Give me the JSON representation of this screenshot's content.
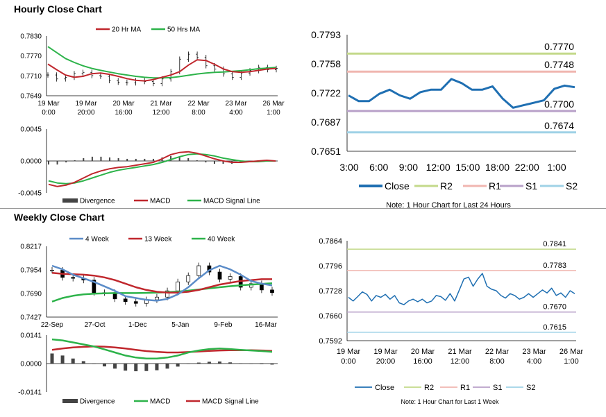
{
  "sections": {
    "hourly_title": "Hourly Close Chart",
    "weekly_title": "Weekly Close Chart"
  },
  "colors": {
    "ma_red": "#c0272d",
    "ma_green": "#2db34a",
    "blue": "#1f6fb2",
    "steel_blue": "#5b8cc8",
    "r2": "#c3d98a",
    "r1": "#f0b6b0",
    "s1": "#b8a0c8",
    "s2": "#9fd2e6",
    "bars": "#444444"
  },
  "chart_data": [
    {
      "id": "hourly_price",
      "type": "line",
      "legend": [
        "20 Hr MA",
        "50 Hrs MA"
      ],
      "y_ticks": [
        "0.7830",
        "0.7770",
        "0.7710",
        "0.7649"
      ],
      "ylim": [
        0.7649,
        0.783
      ],
      "x_ticks": [
        [
          "19 Mar",
          "0:00"
        ],
        [
          "19 Mar",
          "20:00"
        ],
        [
          "20 Mar",
          "16:00"
        ],
        [
          "21 Mar",
          "12:00"
        ],
        [
          "22 Mar",
          "8:00"
        ],
        [
          "23 Mar",
          "4:00"
        ],
        [
          "26 Mar",
          "1:00"
        ]
      ],
      "series": [
        {
          "name": "20 Hr MA",
          "values": [
            0.7745,
            0.7728,
            0.7712,
            0.7705,
            0.7708,
            0.7716,
            0.7718,
            0.7714,
            0.7708,
            0.7701,
            0.7696,
            0.7694,
            0.7698,
            0.7705,
            0.7712,
            0.7722,
            0.7742,
            0.7758,
            0.7756,
            0.7744,
            0.773,
            0.7722,
            0.772,
            0.7722,
            0.7726,
            0.773,
            0.7732
          ]
        },
        {
          "name": "50 Hrs MA",
          "values": [
            0.7798,
            0.778,
            0.7762,
            0.775,
            0.774,
            0.7732,
            0.7726,
            0.7721,
            0.7716,
            0.7712,
            0.7708,
            0.7705,
            0.7703,
            0.7703,
            0.7704,
            0.7707,
            0.7711,
            0.7715,
            0.7718,
            0.772,
            0.7721,
            0.7723,
            0.7725,
            0.7728,
            0.7731,
            0.7733,
            0.7735
          ]
        },
        {
          "name": "price",
          "values": [
            0.7712,
            0.77,
            0.7705,
            0.7716,
            0.772,
            0.771,
            0.7708,
            0.7695,
            0.769,
            0.7688,
            0.7695,
            0.7692,
            0.7686,
            0.77,
            0.7722,
            0.776,
            0.7775,
            0.7765,
            0.774,
            0.773,
            0.7715,
            0.7705,
            0.7718,
            0.7725,
            0.7735,
            0.7728,
            0.7732
          ]
        }
      ]
    },
    {
      "id": "hourly_macd",
      "type": "line",
      "legend": [
        "Divergence",
        "MACD",
        "MACD Signal Line"
      ],
      "y_ticks": [
        "0.0045",
        "0.0000",
        "-0.0045"
      ],
      "ylim": [
        -0.0045,
        0.0045
      ],
      "series": [
        {
          "name": "MACD",
          "values": [
            -0.0033,
            -0.0036,
            -0.0034,
            -0.003,
            -0.0024,
            -0.0018,
            -0.0014,
            -0.0011,
            -0.0009,
            -0.0008,
            -0.0006,
            -0.0004,
            -0.0002,
            0.0003,
            0.0009,
            0.0012,
            0.0013,
            0.0011,
            0.0007,
            0.0003,
            0.0,
            -0.0002,
            -0.0002,
            -0.0001,
            0.0,
            0.0001,
            0.0
          ]
        },
        {
          "name": "MACD Signal Line",
          "values": [
            -0.0028,
            -0.0031,
            -0.0032,
            -0.0031,
            -0.0028,
            -0.0024,
            -0.002,
            -0.0016,
            -0.0013,
            -0.0011,
            -0.0009,
            -0.0007,
            -0.0005,
            -0.0002,
            0.0002,
            0.0006,
            0.0009,
            0.001,
            0.0009,
            0.0007,
            0.0004,
            0.0002,
            0.0,
            -0.0001,
            -0.0001,
            0.0,
            0.0
          ]
        },
        {
          "name": "Divergence",
          "values": [
            -0.0005,
            -0.0005,
            -0.0002,
            0.0001,
            0.0004,
            0.0006,
            0.0006,
            0.0005,
            0.0004,
            0.0003,
            0.0003,
            0.0003,
            0.0003,
            0.0005,
            0.0007,
            0.0006,
            0.0004,
            0.0001,
            -0.0002,
            -0.0004,
            -0.0004,
            -0.0004,
            -0.0002,
            0.0,
            0.0001,
            0.0001,
            0.0
          ]
        }
      ]
    },
    {
      "id": "hourly_levels",
      "type": "line",
      "y_ticks": [
        "0.7793",
        "0.7758",
        "0.7722",
        "0.7687",
        "0.7651"
      ],
      "ylim": [
        0.7651,
        0.7793
      ],
      "x_ticks": [
        "3:00",
        "6:00",
        "9:00",
        "12:00",
        "15:00",
        "18:00",
        "22:00",
        "1:00"
      ],
      "levels": [
        {
          "name": "R2",
          "value": 0.777,
          "label": "0.7770"
        },
        {
          "name": "R1",
          "value": 0.7748,
          "label": "0.7748"
        },
        {
          "name": "S1",
          "value": 0.77,
          "label": "0.7700"
        },
        {
          "name": "S2",
          "value": 0.7674,
          "label": "0.7674"
        }
      ],
      "close": [
        0.7719,
        0.7712,
        0.7712,
        0.7721,
        0.7726,
        0.7719,
        0.7715,
        0.7723,
        0.7726,
        0.7726,
        0.7739,
        0.7734,
        0.7726,
        0.7726,
        0.773,
        0.7715,
        0.7704,
        0.7707,
        0.771,
        0.7713,
        0.7727,
        0.7731,
        0.7729
      ],
      "legend": [
        "Close",
        "R2",
        "R1",
        "S1",
        "S2"
      ],
      "note": "Note: 1 Hour Chart for Last 24 Hours"
    },
    {
      "id": "weekly_price",
      "type": "line",
      "legend": [
        "4 Week",
        "13 Week",
        "40 Week"
      ],
      "y_ticks": [
        "0.8217",
        "0.7954",
        "0.7690",
        "0.7427"
      ],
      "ylim": [
        0.7427,
        0.8217
      ],
      "x_ticks": [
        "22-Sep",
        "27-Oct",
        "1-Dec",
        "5-Jan",
        "9-Feb",
        "16-Mar"
      ],
      "series": [
        {
          "name": "4 Week",
          "values": [
            0.8,
            0.796,
            0.79,
            0.786,
            0.782,
            0.777,
            0.772,
            0.766,
            0.764,
            0.762,
            0.761,
            0.763,
            0.768,
            0.776,
            0.786,
            0.795,
            0.8,
            0.796,
            0.79,
            0.783,
            0.78,
            0.778
          ]
        },
        {
          "name": "13 Week",
          "values": [
            0.792,
            0.791,
            0.7905,
            0.79,
            0.789,
            0.787,
            0.784,
            0.78,
            0.776,
            0.773,
            0.771,
            0.77,
            0.77,
            0.771,
            0.773,
            0.776,
            0.779,
            0.781,
            0.783,
            0.784,
            0.785,
            0.785
          ]
        },
        {
          "name": "40 Week",
          "values": [
            0.76,
            0.764,
            0.7665,
            0.768,
            0.7688,
            0.7692,
            0.7695,
            0.7695,
            0.7695,
            0.7697,
            0.77,
            0.7705,
            0.7712,
            0.7722,
            0.7735,
            0.7748,
            0.776,
            0.7772,
            0.7782,
            0.779,
            0.7797,
            0.7805
          ]
        },
        {
          "name": "price",
          "values": [
            0.795,
            0.787,
            0.786,
            0.784,
            0.77,
            0.77,
            0.763,
            0.76,
            0.758,
            0.762,
            0.765,
            0.772,
            0.782,
            0.789,
            0.8,
            0.793,
            0.785,
            0.788,
            0.776,
            0.78,
            0.773,
            0.77
          ]
        }
      ]
    },
    {
      "id": "weekly_macd",
      "type": "line",
      "legend": [
        "Divergence",
        "MACD",
        "MACD Signal Line"
      ],
      "y_ticks": [
        "0.0141",
        "0.0000",
        "-0.0141"
      ],
      "ylim": [
        -0.0141,
        0.0141
      ],
      "series": [
        {
          "name": "MACD",
          "values": [
            0.012,
            0.0115,
            0.0105,
            0.0095,
            0.0085,
            0.007,
            0.0055,
            0.004,
            0.003,
            0.0025,
            0.0025,
            0.003,
            0.004,
            0.0055,
            0.0065,
            0.0072,
            0.0075,
            0.0072,
            0.0068,
            0.0065,
            0.0062,
            0.0058
          ]
        },
        {
          "name": "MACD Signal Line",
          "values": [
            0.0068,
            0.0075,
            0.008,
            0.0083,
            0.0085,
            0.0084,
            0.008,
            0.0075,
            0.0068,
            0.0062,
            0.0058,
            0.0055,
            0.0055,
            0.0057,
            0.006,
            0.0063,
            0.0065,
            0.0066,
            0.0066,
            0.0066,
            0.0065,
            0.0063
          ]
        },
        {
          "name": "Divergence",
          "values": [
            0.005,
            0.004,
            0.0025,
            0.0012,
            0.0,
            -0.0014,
            -0.0025,
            -0.0035,
            -0.0038,
            -0.0037,
            -0.0033,
            -0.0025,
            -0.0015,
            -0.0002,
            0.0005,
            0.0009,
            0.001,
            0.0006,
            0.0002,
            -0.0001,
            -0.0003,
            -0.0005
          ]
        }
      ]
    },
    {
      "id": "weekly_levels",
      "type": "line",
      "y_ticks": [
        "0.7864",
        "0.7796",
        "0.7728",
        "0.7660",
        "0.7592"
      ],
      "ylim": [
        0.7592,
        0.7864
      ],
      "x_ticks": [
        [
          "19 Mar",
          "0:00"
        ],
        [
          "19 Mar",
          "20:00"
        ],
        [
          "20 Mar",
          "16:00"
        ],
        [
          "21 Mar",
          "12:00"
        ],
        [
          "22 Mar",
          "8:00"
        ],
        [
          "23 Mar",
          "4:00"
        ],
        [
          "26 Mar",
          "1:00"
        ]
      ],
      "levels": [
        {
          "name": "R2",
          "value": 0.7841,
          "label": "0.7841"
        },
        {
          "name": "R1",
          "value": 0.7783,
          "label": "0.7783"
        },
        {
          "name": "S1",
          "value": 0.767,
          "label": "0.7670"
        },
        {
          "name": "S2",
          "value": 0.7615,
          "label": "0.7615"
        }
      ],
      "close": [
        0.771,
        0.77,
        0.7712,
        0.7725,
        0.7718,
        0.77,
        0.7715,
        0.771,
        0.7718,
        0.7705,
        0.7715,
        0.7695,
        0.769,
        0.77,
        0.7705,
        0.7698,
        0.7705,
        0.7695,
        0.77,
        0.7715,
        0.7712,
        0.7702,
        0.772,
        0.77,
        0.773,
        0.776,
        0.7765,
        0.774,
        0.776,
        0.7775,
        0.774,
        0.7732,
        0.7728,
        0.7715,
        0.7708,
        0.772,
        0.7715,
        0.7705,
        0.771,
        0.772,
        0.771,
        0.772,
        0.773,
        0.7722,
        0.7735,
        0.7715,
        0.7722,
        0.771,
        0.7728,
        0.772
      ],
      "legend": [
        "Close",
        "R2",
        "R1",
        "S1",
        "S2"
      ],
      "note": "Note: 1 Hour Chart for Last 1 Week"
    }
  ]
}
